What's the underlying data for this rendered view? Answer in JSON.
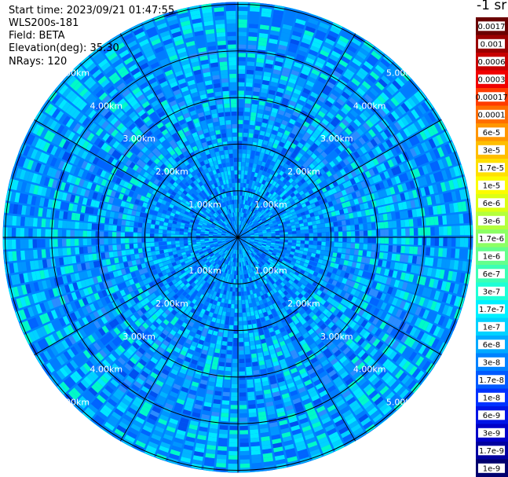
{
  "info": {
    "start_time": "Start time: 2023/09/21 01:47:55",
    "device": "WLS200s-181",
    "field": "Field: BETA",
    "elevation": "Elevation(deg): 35.30",
    "nrays": "NRays: 120"
  },
  "chart_data": {
    "type": "heatmap",
    "projection": "polar",
    "title": "",
    "range_rings_km": [
      1,
      2,
      3,
      4,
      5
    ],
    "ring_labels": [
      "1.00km",
      "2.00km",
      "3.00km",
      "4.00km",
      "5.00km"
    ],
    "nrays": 120,
    "spokes_deg": [
      0,
      30,
      60,
      90,
      120,
      150,
      180,
      210,
      240,
      270,
      300,
      330
    ],
    "max_range_km": 5.05,
    "grid": true,
    "colorbar": {
      "unit": "-1 sr",
      "labels": [
        "0.0017",
        "0.001",
        "0.0006",
        "0.0003",
        "0.00017",
        "0.0001",
        "6e-5",
        "3e-5",
        "1.7e-5",
        "1e-5",
        "6e-6",
        "3e-6",
        "1.7e-6",
        "1e-6",
        "6e-7",
        "3e-7",
        "1.7e-7",
        "1e-7",
        "6e-8",
        "3e-8",
        "1.7e-8",
        "1e-8",
        "6e-9",
        "3e-9",
        "1.7e-9",
        "1e-9"
      ],
      "colors": [
        "#6a0000",
        "#9a0000",
        "#c80000",
        "#f00000",
        "#ff3c00",
        "#ff6e00",
        "#ff9600",
        "#ffbe00",
        "#ffe000",
        "#fcfc00",
        "#dcff14",
        "#b4ff3c",
        "#8cff64",
        "#64ff8c",
        "#3cffb4",
        "#1effd6",
        "#00f0ff",
        "#00d2ff",
        "#00aaff",
        "#0082ff",
        "#005aff",
        "#0032ff",
        "#0014e6",
        "#0000c8",
        "#0000a0",
        "#00006e"
      ]
    }
  }
}
